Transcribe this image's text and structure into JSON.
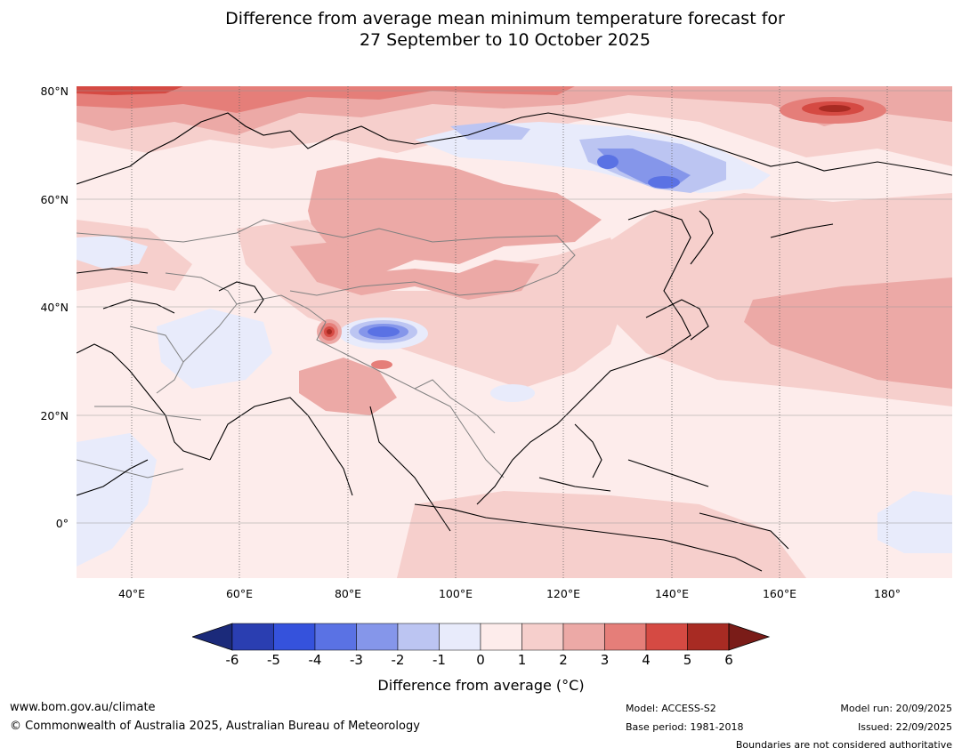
{
  "title": {
    "line1": "Difference from average mean minimum temperature forecast for",
    "line2": "27 September to 10 October 2025"
  },
  "map": {
    "lat_labels": [
      "80°N",
      "60°N",
      "40°N",
      "20°N",
      "0°"
    ],
    "lon_labels": [
      "40°E",
      "60°E",
      "80°E",
      "100°E",
      "120°E",
      "140°E",
      "160°E",
      "180°"
    ],
    "ocean_color": "#fdeceb"
  },
  "colorbar": {
    "ticks": [
      "-6",
      "-5",
      "-4",
      "-3",
      "-2",
      "-1",
      "0",
      "1",
      "2",
      "3",
      "4",
      "5",
      "6"
    ],
    "colors": [
      "#1b2a7a",
      "#2a3eb1",
      "#3552dc",
      "#5a72e4",
      "#8596ea",
      "#bcc5f2",
      "#e8ebfb",
      "#fdeceb",
      "#f6cfcc",
      "#eca9a6",
      "#e57e79",
      "#d54a43",
      "#a82b23",
      "#7a1c18"
    ],
    "label": "Difference from average (",
    "unit": "°C",
    "label_close": ")"
  },
  "footer": {
    "url": "www.bom.gov.au/climate",
    "copyright": "© Commonwealth of Australia 2025, Australian Bureau of Meteorology",
    "model": "Model: ACCESS-S2",
    "base_period": "Base period: 1981-2018",
    "model_run": "Model run: 20/09/2025",
    "issued": "Issued: 22/09/2025",
    "disclaimer": "Boundaries are not considered authoritative"
  }
}
